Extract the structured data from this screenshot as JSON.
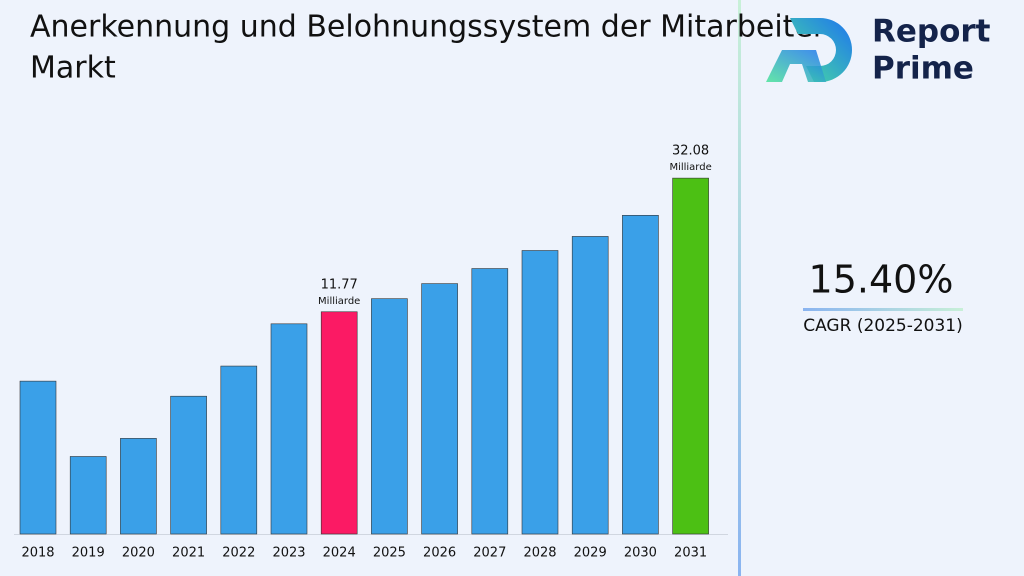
{
  "chart_data": {
    "type": "bar",
    "title": "Anerkennung und Belohnungssystem der Mitarbeiter Markt",
    "categories": [
      "2018",
      "2019",
      "2020",
      "2021",
      "2022",
      "2023",
      "2024",
      "2025",
      "2026",
      "2027",
      "2028",
      "2029",
      "2030",
      "2031"
    ],
    "values": [
      1.23,
      -10.22,
      -7.47,
      -1.06,
      3.52,
      9.94,
      11.77,
      13.76,
      16.05,
      18.34,
      21.08,
      23.22,
      26.43,
      32.08
    ],
    "colors": [
      "#3aa0e8",
      "#3aa0e8",
      "#3aa0e8",
      "#3aa0e8",
      "#3aa0e8",
      "#3aa0e8",
      "#fb1a64",
      "#3aa0e8",
      "#3aa0e8",
      "#3aa0e8",
      "#3aa0e8",
      "#3aa0e8",
      "#3aa0e8",
      "#4cc014"
    ],
    "unit_label": "Milliarde",
    "labeled_bars": [
      6,
      13
    ],
    "ylim": [
      -22,
      40
    ]
  },
  "kpi": {
    "value": "15.40%",
    "label": "CAGR (2025-2031)"
  },
  "logo": {
    "line1": "Report",
    "line2": "Prime"
  }
}
